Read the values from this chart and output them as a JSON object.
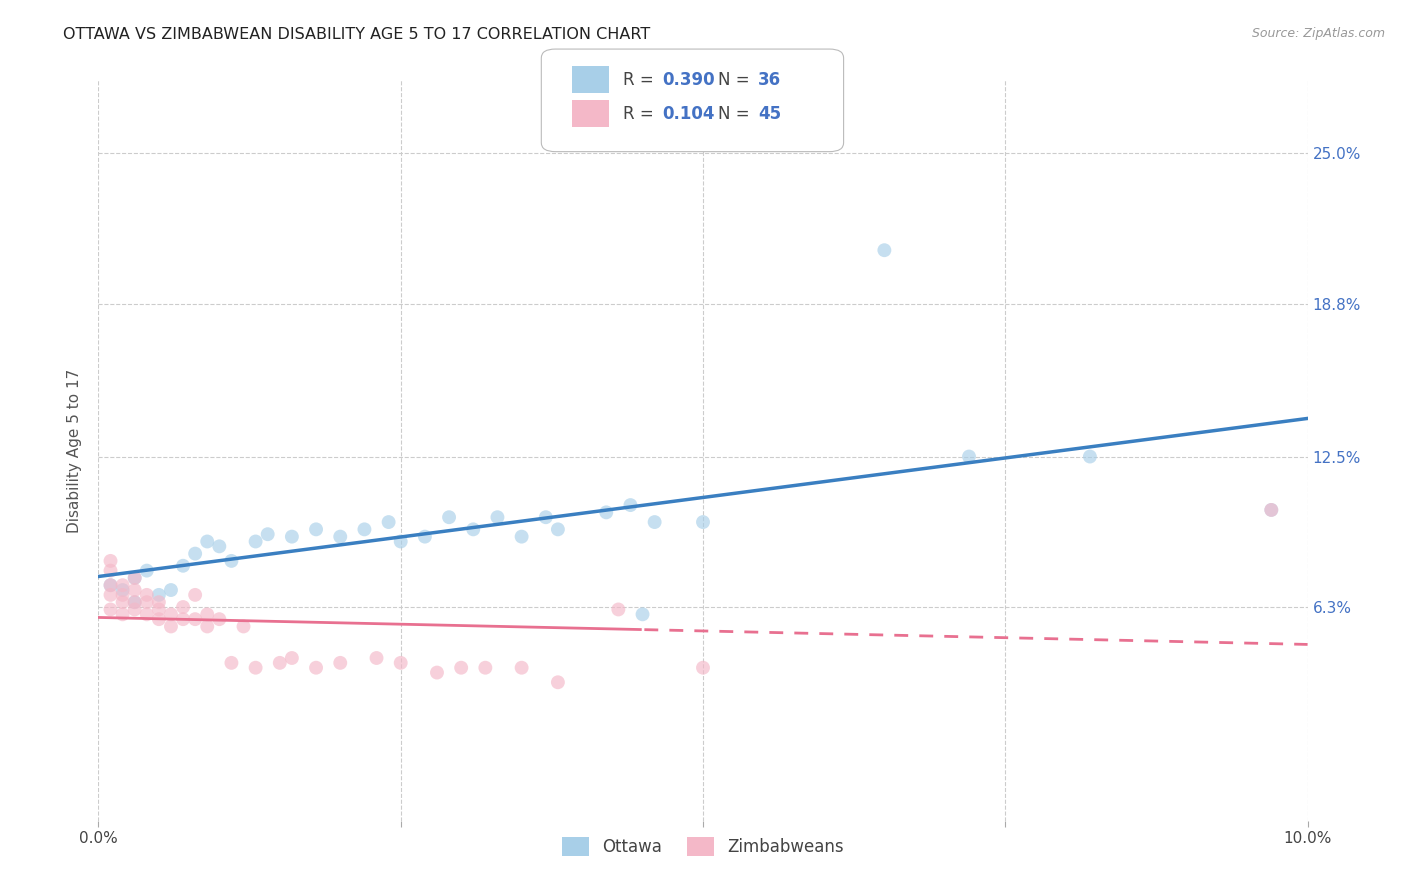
{
  "title": "OTTAWA VS ZIMBABWEAN DISABILITY AGE 5 TO 17 CORRELATION CHART",
  "source": "Source: ZipAtlas.com",
  "ylabel": "Disability Age 5 to 17",
  "xlim": [
    0.0,
    0.1
  ],
  "ylim": [
    -0.025,
    0.28
  ],
  "ytick_positions": [
    0.063,
    0.125,
    0.188,
    0.25
  ],
  "ytick_labels": [
    "6.3%",
    "12.5%",
    "18.8%",
    "25.0%"
  ],
  "xtick_positions": [
    0.0,
    0.025,
    0.05,
    0.075,
    0.1
  ],
  "xtick_labels": [
    "0.0%",
    "",
    "",
    "",
    "10.0%"
  ],
  "legend_label_ottawa": "Ottawa",
  "legend_label_zimb": "Zimbabweans",
  "ottawa_color": "#a8cfe8",
  "zimb_color": "#f4b8c8",
  "trendline_ottawa_color": "#3a7fc1",
  "trendline_zimb_color": "#e87090",
  "background_color": "#ffffff",
  "legend_box_color": "#ffffff",
  "legend_border_color": "#cccccc",
  "right_label_color": "#4472c4",
  "title_color": "#222222",
  "source_color": "#999999",
  "grid_color": "#cccccc",
  "ottawa_x": [
    0.001,
    0.002,
    0.003,
    0.003,
    0.004,
    0.005,
    0.006,
    0.007,
    0.008,
    0.009,
    0.01,
    0.011,
    0.013,
    0.014,
    0.016,
    0.018,
    0.02,
    0.022,
    0.024,
    0.025,
    0.027,
    0.029,
    0.031,
    0.033,
    0.035,
    0.037,
    0.038,
    0.042,
    0.044,
    0.046,
    0.05,
    0.065,
    0.072,
    0.082,
    0.045,
    0.097
  ],
  "ottawa_y": [
    0.072,
    0.07,
    0.065,
    0.075,
    0.078,
    0.068,
    0.07,
    0.08,
    0.085,
    0.09,
    0.088,
    0.082,
    0.09,
    0.093,
    0.092,
    0.095,
    0.092,
    0.095,
    0.098,
    0.09,
    0.092,
    0.1,
    0.095,
    0.1,
    0.092,
    0.1,
    0.095,
    0.102,
    0.105,
    0.098,
    0.098,
    0.21,
    0.125,
    0.125,
    0.06,
    0.103
  ],
  "zimb_x": [
    0.001,
    0.001,
    0.001,
    0.001,
    0.001,
    0.002,
    0.002,
    0.002,
    0.002,
    0.003,
    0.003,
    0.003,
    0.003,
    0.004,
    0.004,
    0.004,
    0.005,
    0.005,
    0.005,
    0.006,
    0.006,
    0.007,
    0.007,
    0.008,
    0.008,
    0.009,
    0.009,
    0.01,
    0.011,
    0.012,
    0.013,
    0.015,
    0.016,
    0.018,
    0.02,
    0.023,
    0.025,
    0.028,
    0.03,
    0.032,
    0.035,
    0.038,
    0.043,
    0.05,
    0.097
  ],
  "zimb_y": [
    0.068,
    0.072,
    0.078,
    0.062,
    0.082,
    0.065,
    0.068,
    0.072,
    0.06,
    0.062,
    0.065,
    0.07,
    0.075,
    0.06,
    0.065,
    0.068,
    0.058,
    0.062,
    0.065,
    0.055,
    0.06,
    0.058,
    0.063,
    0.058,
    0.068,
    0.055,
    0.06,
    0.058,
    0.04,
    0.055,
    0.038,
    0.04,
    0.042,
    0.038,
    0.04,
    0.042,
    0.04,
    0.036,
    0.038,
    0.038,
    0.038,
    0.032,
    0.062,
    0.038,
    0.103
  ],
  "trendline_solid_end": 0.045,
  "dot_size": 100,
  "dot_alpha": 0.65
}
